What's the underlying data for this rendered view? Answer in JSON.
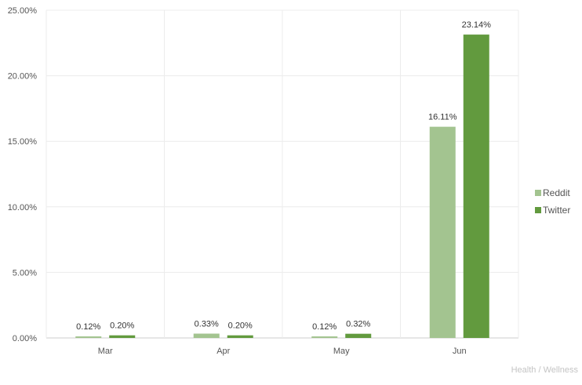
{
  "chart_data": {
    "type": "bar",
    "title": "",
    "xlabel": "",
    "ylabel": "",
    "categories": [
      "Mar",
      "Apr",
      "May",
      "Jun"
    ],
    "series": [
      {
        "name": "Reddit",
        "values": [
          0.12,
          0.33,
          0.12,
          16.11
        ],
        "labels": [
          "0.12%",
          "0.33%",
          "0.12%",
          "16.11%"
        ],
        "color": "#a3c490"
      },
      {
        "name": "Twitter",
        "values": [
          0.2,
          0.2,
          0.32,
          23.14
        ],
        "labels": [
          "0.20%",
          "0.20%",
          "0.32%",
          "23.14%"
        ],
        "color": "#629a3e"
      }
    ],
    "ylim": [
      0,
      25
    ],
    "yticks": [
      "0.00%",
      "5.00%",
      "10.00%",
      "15.00%",
      "20.00%",
      "25.00%"
    ],
    "grid": true,
    "legend_position": "right"
  },
  "footnote": "Health / Wellness"
}
